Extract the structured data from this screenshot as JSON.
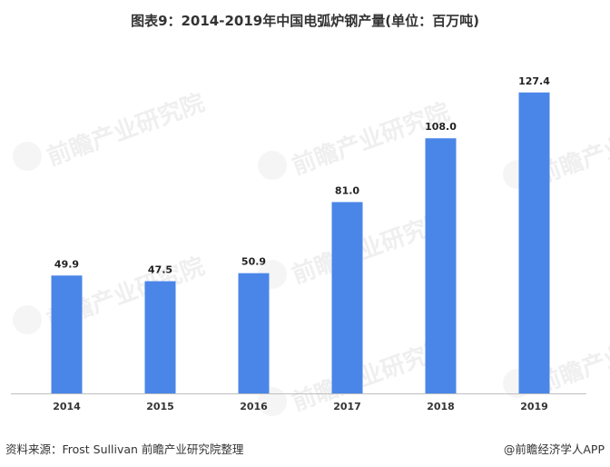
{
  "title": "图表9：2014-2019年中国电弧炉钢产量(单位：百万吨)",
  "colors": {
    "bar": "#4a86e8",
    "axis": "#bfbfbf"
  },
  "chart_data": {
    "type": "bar",
    "title": "图表9：2014-2019年中国电弧炉钢产量(单位：百万吨)",
    "categories": [
      "2014",
      "2015",
      "2016",
      "2017",
      "2018",
      "2019"
    ],
    "values": [
      49.9,
      47.5,
      50.9,
      81.0,
      108.0,
      127.4
    ],
    "value_labels": [
      "49.9",
      "47.5",
      "50.9",
      "81.0",
      "108.0",
      "127.4"
    ],
    "ylim": [
      0,
      135
    ],
    "grid": false,
    "legend": "none"
  },
  "watermark": {
    "text": "前瞻产业研究院"
  },
  "footer": {
    "source": "资料来源：Frost Sullivan  前瞻产业研究院整理",
    "brand": "@前瞻经济学人APP"
  }
}
